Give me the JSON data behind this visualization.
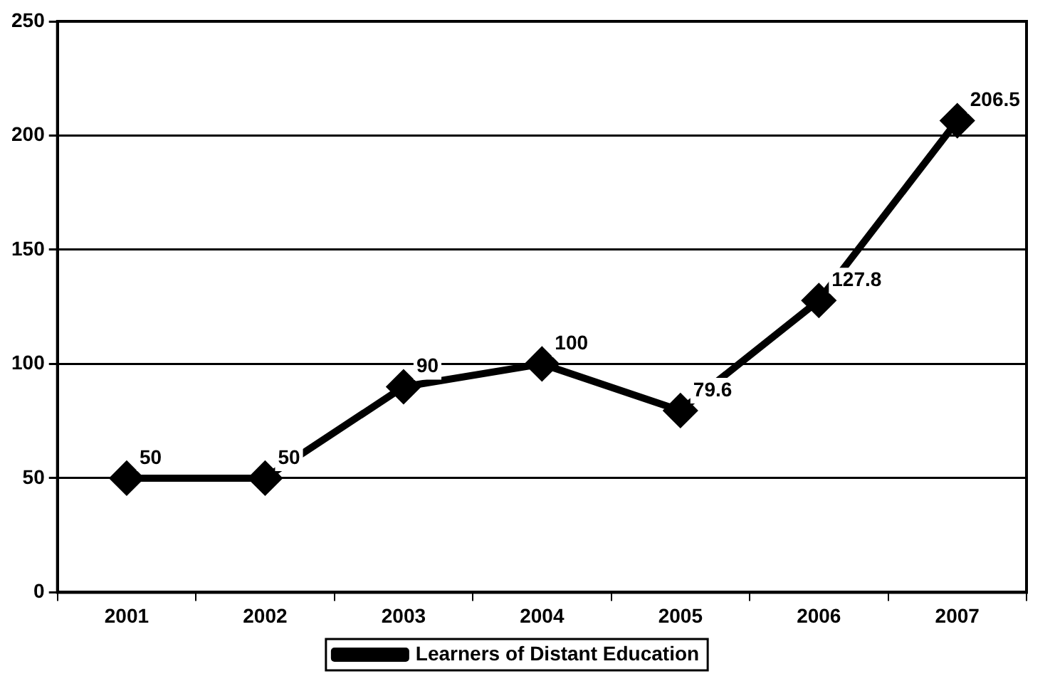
{
  "chart_data": {
    "type": "line",
    "categories": [
      "2001",
      "2002",
      "2003",
      "2004",
      "2005",
      "2006",
      "2007"
    ],
    "series": [
      {
        "name": "Learners of Distant Education",
        "color": "#000000",
        "values": [
          50,
          50,
          90,
          100,
          79.6,
          127.8,
          206.5
        ]
      }
    ],
    "ylim": [
      0,
      250
    ],
    "yticks": [
      0,
      50,
      100,
      150,
      200,
      250
    ],
    "grid": "y",
    "legend": "bottom",
    "marker": "diamond",
    "line_style": "solid",
    "data_labels": true
  }
}
